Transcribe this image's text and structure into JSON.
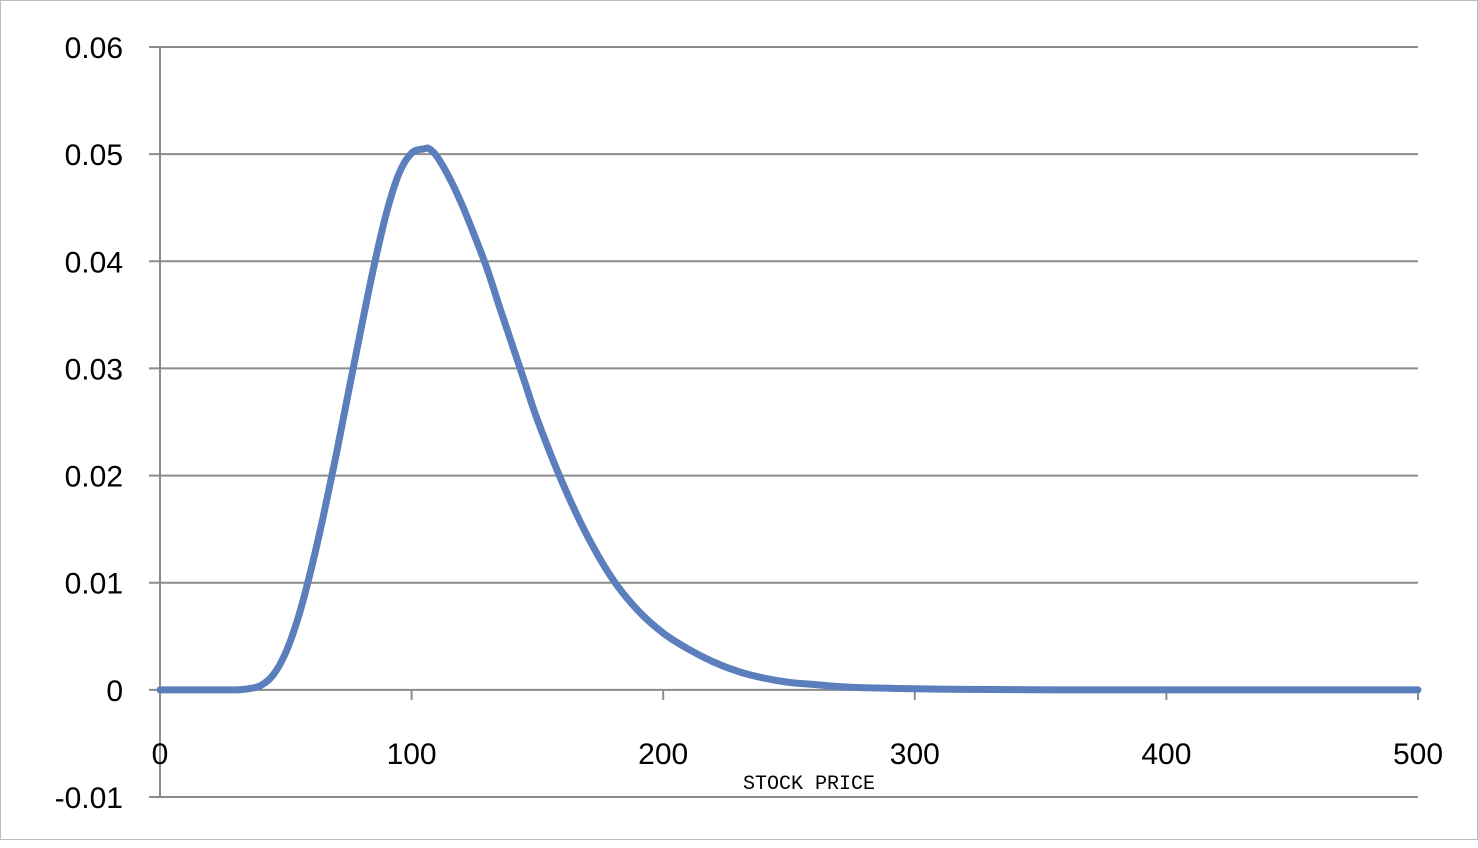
{
  "chart_data": {
    "type": "line",
    "title": "",
    "xlabel": "STOCK PRICE",
    "ylabel": "",
    "xlim": [
      0,
      500
    ],
    "ylim": [
      -0.01,
      0.06
    ],
    "x_ticks": [
      "0",
      "100",
      "200",
      "300",
      "400",
      "500"
    ],
    "y_ticks": [
      "0.06",
      "0.05",
      "0.04",
      "0.03",
      "0.02",
      "0.01",
      "0",
      "-0.01"
    ],
    "grid": true,
    "legend": "none",
    "series": [
      {
        "color": "#5b7fbc",
        "x": [
          0,
          10,
          20,
          30,
          35,
          40,
          45,
          50,
          55,
          60,
          65,
          70,
          75,
          80,
          85,
          90,
          95,
          100,
          105,
          107,
          110,
          115,
          120,
          125,
          130,
          135,
          140,
          145,
          150,
          160,
          170,
          180,
          190,
          200,
          210,
          220,
          230,
          240,
          250,
          260,
          270,
          280,
          300,
          320,
          340,
          360,
          400,
          450,
          500
        ],
        "y": [
          0,
          0,
          0,
          0,
          0.0001,
          0.0004,
          0.0014,
          0.0035,
          0.0068,
          0.0112,
          0.0163,
          0.0219,
          0.0279,
          0.0338,
          0.0395,
          0.0445,
          0.0482,
          0.0501,
          0.0505,
          0.0505,
          0.0498,
          0.0478,
          0.0453,
          0.0424,
          0.0393,
          0.0357,
          0.0322,
          0.0287,
          0.0252,
          0.0193,
          0.0143,
          0.0103,
          0.0074,
          0.0053,
          0.0038,
          0.0026,
          0.0017,
          0.0011,
          0.0007,
          0.0005,
          0.0003,
          0.0002,
          0.0001,
          5e-05,
          2e-05,
          0,
          0,
          0,
          0
        ]
      }
    ]
  }
}
